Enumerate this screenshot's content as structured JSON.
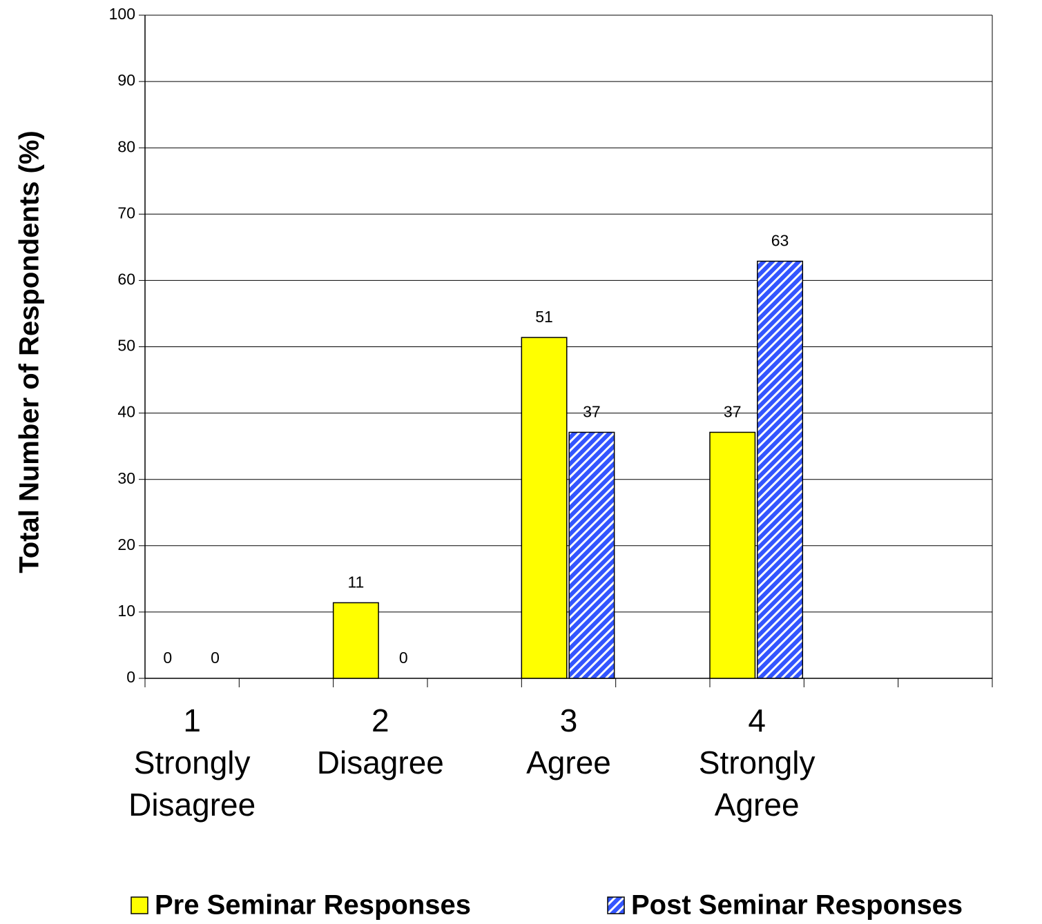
{
  "chart_data": {
    "type": "bar",
    "y_label": "Total Number of Respondents (%)",
    "categories": [
      [
        "1",
        "Strongly",
        "Disagree"
      ],
      [
        "2",
        "Disagree"
      ],
      [
        "3",
        "Agree"
      ],
      [
        "4",
        "Strongly",
        "Agree"
      ]
    ],
    "series": [
      {
        "name": "Pre Seminar Responses",
        "color": "#ffff00",
        "values": [
          0,
          11.4,
          51.4,
          37.1
        ],
        "value_labels": [
          "0",
          "11",
          "51",
          "37"
        ]
      },
      {
        "name": "Post Seminar Responses",
        "color": "#3355ff",
        "pattern": "hatch",
        "values": [
          0,
          0,
          37.1,
          62.9
        ],
        "value_labels": [
          "0",
          "0",
          "37",
          "63"
        ]
      }
    ],
    "ylim": [
      0,
      100
    ],
    "yticks": [
      0,
      10,
      20,
      30,
      40,
      50,
      60,
      70,
      80,
      90,
      100
    ],
    "grid": true,
    "legend": "bottom"
  }
}
